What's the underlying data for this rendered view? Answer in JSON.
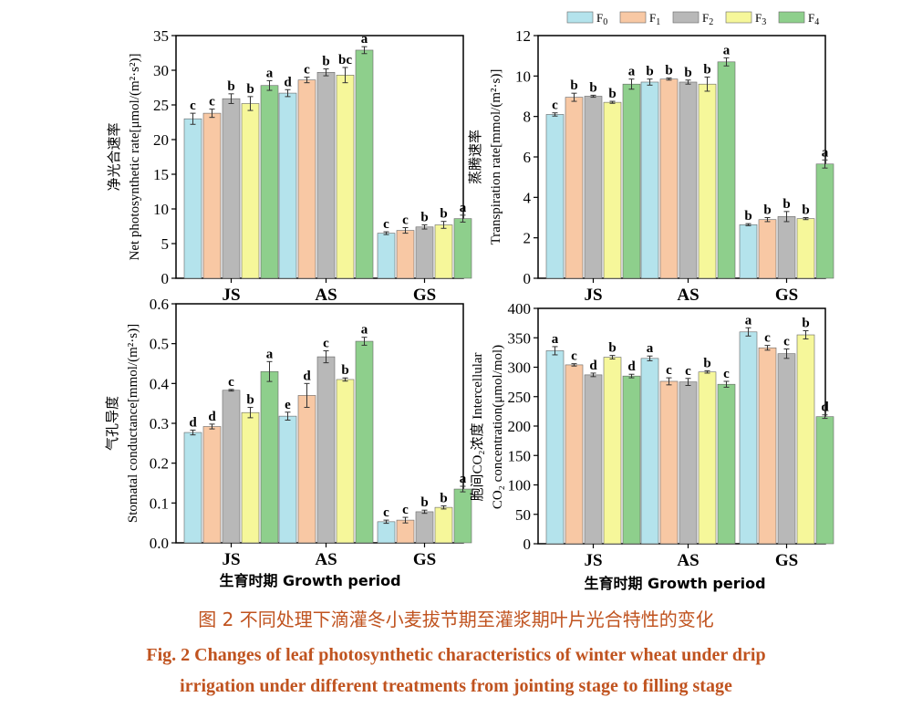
{
  "colors": {
    "F0": "#b4e3ec",
    "F1": "#f8c8a4",
    "F2": "#b8b8b8",
    "F3": "#f6f79a",
    "F4": "#8ecf8c",
    "caption": "#c0531f"
  },
  "legend": [
    "F0",
    "F1",
    "F2",
    "F3",
    "F4"
  ],
  "x_axis_label": "生育时期  Growth period",
  "caption": {
    "cn": "图 2   不同处理下滴灌冬小麦拔节期至灌浆期叶片光合特性的变化",
    "en_line1": "Fig. 2     Changes of leaf photosynthetic characteristics of winter wheat under drip",
    "en_line2": "irrigation under different treatments from jointing stage to filling stage"
  },
  "chart_data": [
    {
      "type": "bar",
      "ylabel_cn": "净光合速率",
      "ylabel_en": "Net photosynthetic rate[μmol/(m²·s²)]",
      "ylim": [
        0,
        35
      ],
      "yticks": [
        0,
        5,
        10,
        15,
        20,
        25,
        30,
        35
      ],
      "tick_labels": [
        "0",
        "5",
        "10",
        "15",
        "20",
        "25",
        "30",
        "35"
      ],
      "categories": [
        "JS",
        "AS",
        "GS"
      ],
      "series": [
        {
          "name": "F0",
          "values": [
            23.0,
            26.7,
            6.5
          ],
          "err": [
            0.8,
            0.5,
            0.2
          ],
          "sig": [
            "c",
            "d",
            "c"
          ]
        },
        {
          "name": "F1",
          "values": [
            23.8,
            28.6,
            6.9
          ],
          "err": [
            0.6,
            0.4,
            0.4
          ],
          "sig": [
            "c",
            "c",
            "c"
          ]
        },
        {
          "name": "F2",
          "values": [
            25.9,
            29.7,
            7.4
          ],
          "err": [
            0.7,
            0.5,
            0.3
          ],
          "sig": [
            "b",
            "b",
            "b"
          ]
        },
        {
          "name": "F3",
          "values": [
            25.2,
            29.3,
            7.7
          ],
          "err": [
            1.0,
            1.1,
            0.5
          ],
          "sig": [
            "b",
            "bc",
            "b"
          ]
        },
        {
          "name": "F4",
          "values": [
            27.8,
            32.9,
            8.6
          ],
          "err": [
            0.7,
            0.5,
            0.5
          ],
          "sig": [
            "a",
            "a",
            "a"
          ]
        }
      ]
    },
    {
      "type": "bar",
      "ylabel_cn": "蒸腾速率",
      "ylabel_en": "Transpiration rate[mmol/(m²·s)]",
      "ylim": [
        0,
        12
      ],
      "yticks": [
        0,
        2,
        4,
        6,
        8,
        10,
        12
      ],
      "tick_labels": [
        "0",
        "2",
        "4",
        "6",
        "8",
        "10",
        "12"
      ],
      "categories": [
        "JS",
        "AS",
        "GS"
      ],
      "series": [
        {
          "name": "F0",
          "values": [
            8.1,
            9.7,
            2.65
          ],
          "err": [
            0.08,
            0.15,
            0.05
          ],
          "sig": [
            "c",
            "b",
            "b"
          ]
        },
        {
          "name": "F1",
          "values": [
            8.95,
            9.85,
            2.9
          ],
          "err": [
            0.2,
            0.05,
            0.1
          ],
          "sig": [
            "b",
            "b",
            "b"
          ]
        },
        {
          "name": "F2",
          "values": [
            9.0,
            9.7,
            3.05
          ],
          "err": [
            0.05,
            0.1,
            0.25
          ],
          "sig": [
            "b",
            "b",
            "b"
          ]
        },
        {
          "name": "F3",
          "values": [
            8.7,
            9.6,
            2.95
          ],
          "err": [
            0.05,
            0.35,
            0.05
          ],
          "sig": [
            "b",
            "b",
            "b"
          ]
        },
        {
          "name": "F4",
          "values": [
            9.6,
            10.7,
            5.65
          ],
          "err": [
            0.25,
            0.2,
            0.2
          ],
          "sig": [
            "a",
            "a",
            "a"
          ]
        }
      ]
    },
    {
      "type": "bar",
      "ylabel_cn": "气孔导度",
      "ylabel_en": "Stomatal conductance[mmol/(m²·s)]",
      "ylim": [
        0,
        0.6
      ],
      "yticks": [
        0,
        0.1,
        0.2,
        0.3,
        0.4,
        0.5,
        0.6
      ],
      "tick_labels": [
        "0.0",
        "0.1",
        "0.2",
        "0.3",
        "0.4",
        "0.5",
        "0.6"
      ],
      "categories": [
        "JS",
        "AS",
        "GS"
      ],
      "series": [
        {
          "name": "F0",
          "values": [
            0.277,
            0.318,
            0.053
          ],
          "err": [
            0.006,
            0.01,
            0.004
          ],
          "sig": [
            "d",
            "e",
            "c"
          ]
        },
        {
          "name": "F1",
          "values": [
            0.292,
            0.37,
            0.057
          ],
          "err": [
            0.006,
            0.03,
            0.007
          ],
          "sig": [
            "d",
            "d",
            "c"
          ]
        },
        {
          "name": "F2",
          "values": [
            0.383,
            0.467,
            0.078
          ],
          "err": [
            0.002,
            0.015,
            0.004
          ],
          "sig": [
            "c",
            "c",
            "b"
          ]
        },
        {
          "name": "F3",
          "values": [
            0.327,
            0.41,
            0.089
          ],
          "err": [
            0.013,
            0.004,
            0.004
          ],
          "sig": [
            "b",
            "b",
            "b"
          ]
        },
        {
          "name": "F4",
          "values": [
            0.43,
            0.506,
            0.135
          ],
          "err": [
            0.025,
            0.01,
            0.007
          ],
          "sig": [
            "a",
            "a",
            "a"
          ]
        }
      ]
    },
    {
      "type": "bar",
      "ylabel_cn": "胞间CO₂浓度  Intercellular",
      "ylabel_en": "CO₂ concentration(μmol/mol)",
      "ylim": [
        0,
        400
      ],
      "yticks": [
        0,
        50,
        100,
        150,
        200,
        250,
        300,
        350,
        400
      ],
      "tick_labels": [
        "0",
        "50",
        "100",
        "150",
        "200",
        "250",
        "300",
        "350",
        "400"
      ],
      "categories": [
        "JS",
        "AS",
        "GS"
      ],
      "series": [
        {
          "name": "F0",
          "values": [
            328,
            315,
            360
          ],
          "err": [
            7,
            4,
            7
          ],
          "sig": [
            "a",
            "a",
            "a"
          ]
        },
        {
          "name": "F1",
          "values": [
            304,
            276,
            333
          ],
          "err": [
            2,
            6,
            4
          ],
          "sig": [
            "c",
            "c",
            "c"
          ]
        },
        {
          "name": "F2",
          "values": [
            287,
            275,
            323
          ],
          "err": [
            3,
            6,
            8
          ],
          "sig": [
            "d",
            "c",
            "c"
          ]
        },
        {
          "name": "F3",
          "values": [
            317,
            292,
            355
          ],
          "err": [
            3,
            2,
            7
          ],
          "sig": [
            "b",
            "b",
            "b"
          ]
        },
        {
          "name": "F4",
          "values": [
            285,
            271,
            216
          ],
          "err": [
            3,
            5,
            3
          ],
          "sig": [
            "d",
            "c",
            "d"
          ]
        }
      ]
    }
  ]
}
